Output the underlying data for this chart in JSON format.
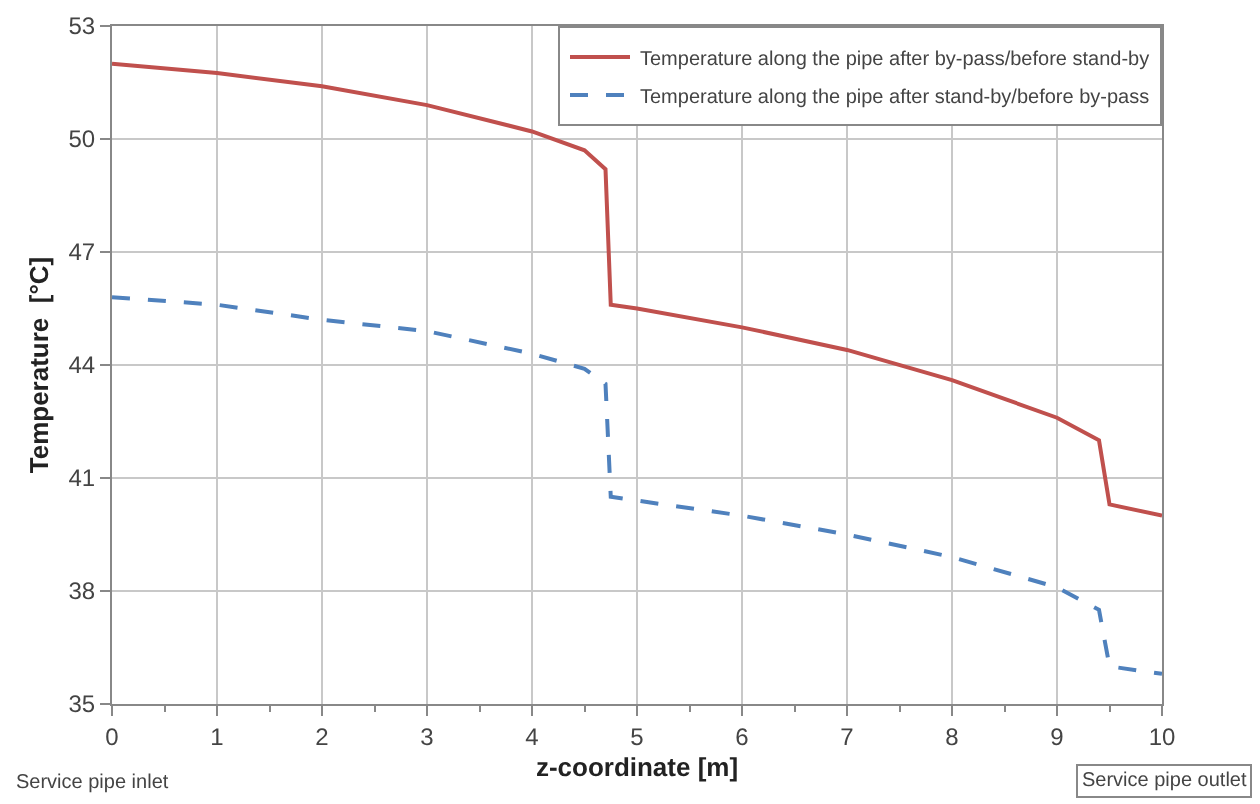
{
  "chart_data": {
    "type": "line",
    "xlabel": "z-coordinate [m]",
    "ylabel": "Temperature  [°C]",
    "xlim": [
      0,
      10
    ],
    "xticks": [
      0,
      1,
      2,
      3,
      4,
      5,
      6,
      7,
      8,
      9,
      10
    ],
    "ylim": [
      35,
      53
    ],
    "yticks": [
      35,
      38,
      41,
      44,
      47,
      50,
      53
    ],
    "grid": true,
    "legend": "top right",
    "marker": "none",
    "annotations": [
      "Service pipe inlet",
      "Service pipe outlet"
    ],
    "series": [
      {
        "name": "Temperature along the pipe after by-pass/before stand-by",
        "color": "#c0504d",
        "line_style": "solid",
        "x": [
          0,
          1,
          2,
          3,
          4,
          4.5,
          4.7,
          4.75,
          5,
          6,
          7,
          8,
          8.5,
          9,
          9.4,
          9.5,
          10
        ],
        "values": [
          52.0,
          51.75,
          51.4,
          50.9,
          50.2,
          49.7,
          49.2,
          45.6,
          45.5,
          45.0,
          44.4,
          43.6,
          43.1,
          42.6,
          42.0,
          40.3,
          40.0
        ]
      },
      {
        "name": "Temperature along the pipe after stand-by/before by-pass",
        "color": "#4f81bd",
        "line_style": "dashed",
        "x": [
          0,
          1,
          2,
          3,
          4,
          4.5,
          4.7,
          4.75,
          5,
          6,
          7,
          8,
          9,
          9.4,
          9.5,
          10
        ],
        "values": [
          45.8,
          45.6,
          45.2,
          44.9,
          44.3,
          43.9,
          43.5,
          40.5,
          40.4,
          40.0,
          39.5,
          38.9,
          38.1,
          37.5,
          36.0,
          35.8
        ]
      }
    ]
  }
}
